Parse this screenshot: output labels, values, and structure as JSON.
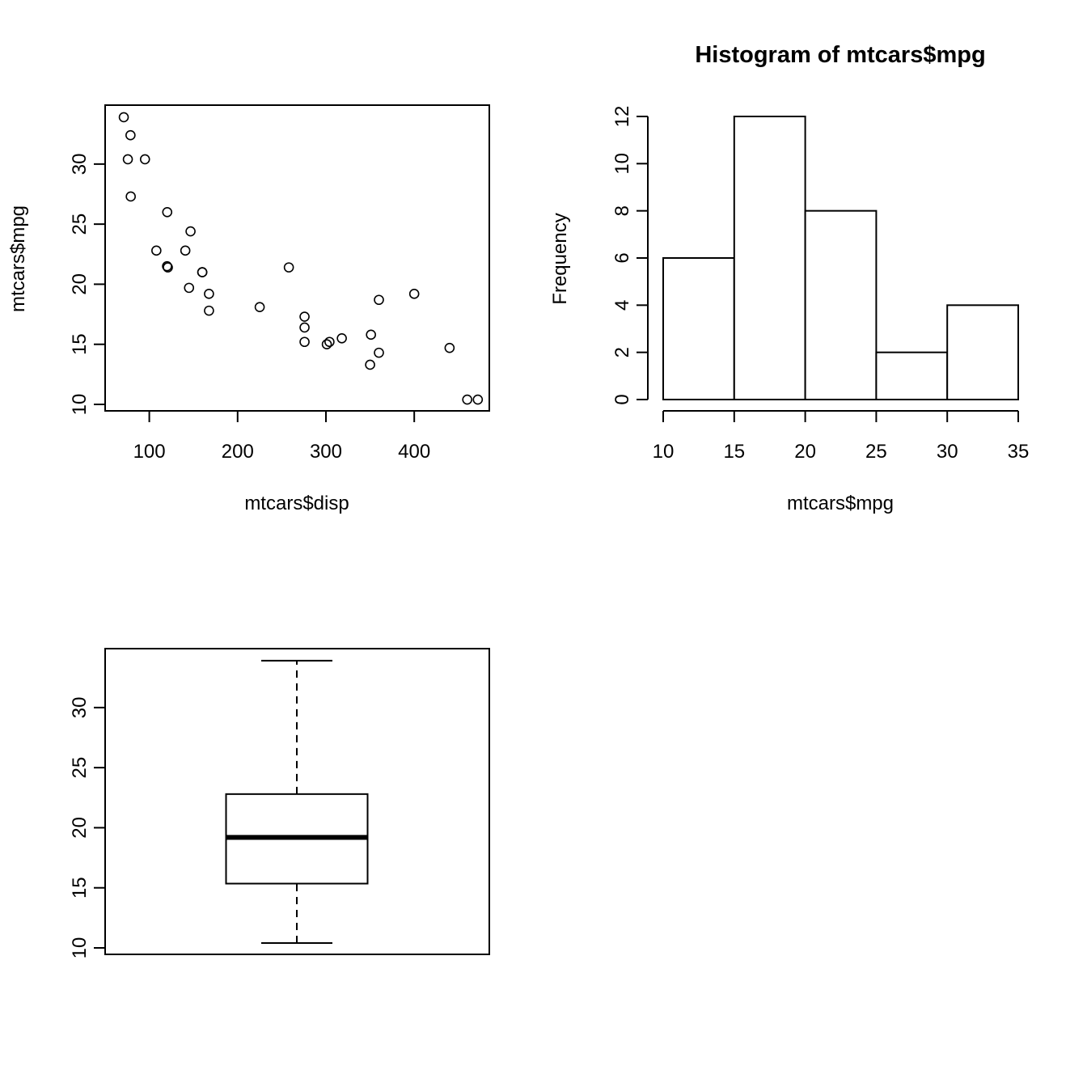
{
  "chart_data": [
    {
      "type": "scatter",
      "title": "",
      "xlabel": "mtcars$disp",
      "ylabel": "mtcars$mpg",
      "xlim": [
        50,
        485
      ],
      "ylim": [
        10,
        34.5
      ],
      "xticks": [
        100,
        200,
        300,
        400
      ],
      "yticks": [
        10,
        15,
        20,
        25,
        30
      ],
      "x": [
        160,
        160,
        108,
        258,
        360,
        225,
        360,
        146.7,
        140.8,
        167.6,
        167.6,
        275.8,
        275.8,
        275.8,
        472,
        460,
        440,
        78.7,
        75.7,
        71.1,
        120.1,
        318,
        304,
        350,
        400,
        79,
        120.3,
        95.1,
        351,
        145,
        301,
        121
      ],
      "y": [
        21,
        21,
        22.8,
        21.4,
        18.7,
        18.1,
        14.3,
        24.4,
        22.8,
        19.2,
        17.8,
        16.4,
        17.3,
        15.2,
        10.4,
        10.4,
        14.7,
        32.4,
        30.4,
        33.9,
        21.5,
        15.5,
        15.2,
        13.3,
        19.2,
        27.3,
        26,
        30.4,
        15.8,
        19.7,
        15,
        21.4
      ]
    },
    {
      "type": "bar",
      "title": "Histogram of mtcars$mpg",
      "xlabel": "mtcars$mpg",
      "ylabel": "Frequency",
      "bins": [
        [
          10,
          15
        ],
        [
          15,
          20
        ],
        [
          20,
          25
        ],
        [
          25,
          30
        ],
        [
          30,
          35
        ]
      ],
      "values": [
        6,
        12,
        8,
        2,
        4
      ],
      "xlim": [
        10,
        35
      ],
      "ylim": [
        0,
        12
      ],
      "xticks": [
        10,
        15,
        20,
        25,
        30,
        35
      ],
      "yticks": [
        0,
        2,
        4,
        6,
        8,
        10,
        12
      ]
    },
    {
      "type": "box",
      "title": "",
      "ylim": [
        10,
        34.5
      ],
      "yticks": [
        10,
        15,
        20,
        25,
        30
      ],
      "min": 10.4,
      "q1": 15.35,
      "median": 19.2,
      "q3": 22.8,
      "max": 33.9
    }
  ]
}
